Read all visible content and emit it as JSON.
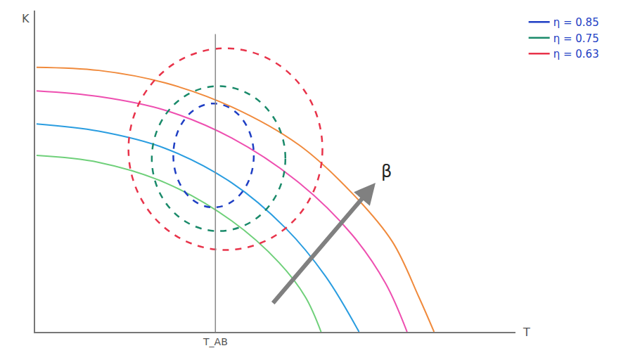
{
  "chart_data": {
    "type": "line",
    "x_label": "T",
    "y_label": "K",
    "xlim": [
      0,
      105
    ],
    "ylim": [
      0,
      102
    ],
    "xticks": [],
    "yticks": [],
    "tick_labels": false,
    "grid": false,
    "legend": "top right",
    "series": [
      {
        "color": "#f08a3c",
        "x": [
          0.3,
          13.9,
          28.5,
          43,
          57.7,
          69.3,
          78.1,
          83.9,
          87.2
        ],
        "values": [
          84,
          83,
          79,
          71.4,
          59.3,
          44,
          28.6,
          11,
          0
        ]
      },
      {
        "color": "#ee4fb0",
        "x": [
          0.3,
          13.9,
          28.5,
          43,
          57.7,
          69.3,
          76.6,
          81.3
        ],
        "values": [
          76.5,
          74.7,
          70.3,
          61.5,
          47.3,
          30.8,
          15.4,
          0
        ]
      },
      {
        "color": "#2a9de0",
        "x": [
          0.3,
          13.9,
          28.5,
          43,
          54.7,
          63.5,
          70.8
        ],
        "values": [
          66,
          63.7,
          58.2,
          47.3,
          33,
          17.6,
          0
        ]
      },
      {
        "color": "#6fd07a",
        "x": [
          0.3,
          13.9,
          28.5,
          43,
          53.3,
          59.1,
          62.5
        ],
        "values": [
          56,
          53.8,
          47.3,
          35.2,
          22,
          11,
          0
        ]
      }
    ],
    "contours": [
      {
        "name": "η = 0.85",
        "color": "#1f3fc4",
        "center": [
          39,
          56
        ],
        "radii": [
          8.8,
          16.5
        ]
      },
      {
        "name": "η = 0.75",
        "color": "#1a8a6a",
        "center": [
          40.1,
          55
        ],
        "radii": [
          14.6,
          23
        ]
      },
      {
        "name": "η = 0.63",
        "color": "#e8334a",
        "center": [
          41.6,
          58
        ],
        "radii": [
          21.2,
          32
        ]
      }
    ],
    "marker_line": {
      "text": "T_AB",
      "x": 39.4,
      "y": [
        0,
        94.5
      ]
    },
    "annotations": [
      {
        "text": "β",
        "x": 74.4,
        "y": 47.3,
        "from": [
          51.8,
          8.8
        ]
      }
    ]
  }
}
